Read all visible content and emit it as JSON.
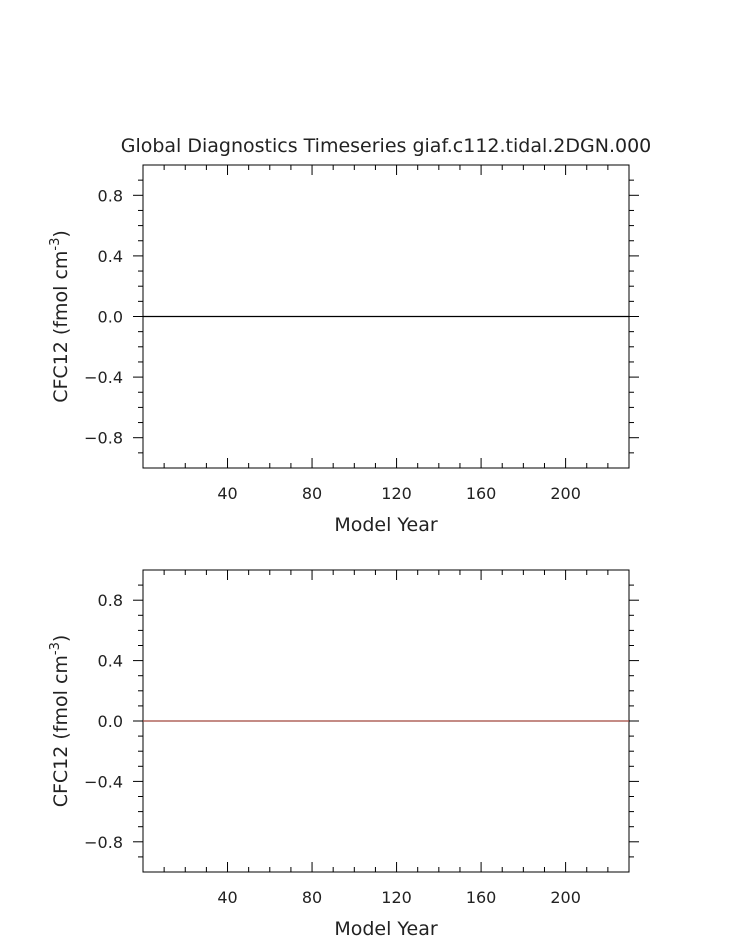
{
  "title": "Global Diagnostics Timeseries giaf.c112.tidal.2DGN.000",
  "chart_data": [
    {
      "type": "line",
      "xlabel": "Model Year",
      "ylabel_main": "CFC12 (fmol cm",
      "ylabel_exp": "-3",
      "ylabel_close": ")",
      "xlim": [
        0,
        230
      ],
      "ylim": [
        -1.0,
        1.0
      ],
      "xticks": [
        40,
        80,
        120,
        160,
        200
      ],
      "xtick_labels": [
        "40",
        "80",
        "120",
        "160",
        "200"
      ],
      "yticks": [
        0.8,
        0.4,
        0.0,
        -0.4,
        -0.8
      ],
      "ytick_labels": [
        "0.8",
        "0.4",
        "0.0",
        "−0.4",
        "−0.8"
      ],
      "grid": false,
      "series": [
        {
          "x": [
            0,
            230
          ],
          "values": [
            0.0,
            0.0
          ],
          "color": "#000000"
        }
      ]
    },
    {
      "type": "line",
      "xlabel": "Model Year",
      "ylabel_main": "CFC12 (fmol cm",
      "ylabel_exp": "-3",
      "ylabel_close": ")",
      "xlim": [
        0,
        230
      ],
      "ylim": [
        -1.0,
        1.0
      ],
      "xticks": [
        40,
        80,
        120,
        160,
        200
      ],
      "xtick_labels": [
        "40",
        "80",
        "120",
        "160",
        "200"
      ],
      "yticks": [
        0.8,
        0.4,
        0.0,
        -0.4,
        -0.8
      ],
      "ytick_labels": [
        "0.8",
        "0.4",
        "0.0",
        "−0.4",
        "−0.8"
      ],
      "grid": false,
      "series": [
        {
          "x": [
            0,
            230
          ],
          "values": [
            0.0,
            0.0
          ],
          "color": "#a0463c"
        }
      ]
    }
  ]
}
